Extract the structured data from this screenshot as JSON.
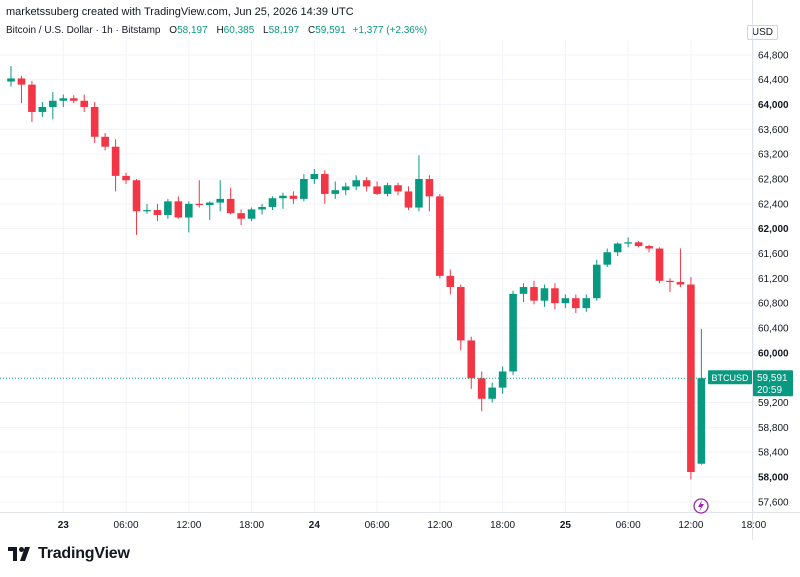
{
  "header": {
    "caption": "marketssuberg created with TradingView.com, Jun 25, 2026 14:39 UTC"
  },
  "legend": {
    "symbol": "Bitcoin / U.S. Dollar · 1h · Bitstamp",
    "open_label": "O",
    "open": "58,197",
    "high_label": "H",
    "high": "60,385",
    "low_label": "L",
    "low": "58,197",
    "close_label": "C",
    "close": "59,591",
    "change": "+1,377 (+2.36%)"
  },
  "currency": "USD",
  "brand": {
    "name": "TradingView",
    "icon": "tradingview-logo-icon"
  },
  "price_tag": {
    "symbol": "BTCUSD",
    "price": "59,591",
    "countdown": "20:59"
  },
  "colors": {
    "up": "#089981",
    "down": "#f23645",
    "grid": "#f0f3fa",
    "text": "#131722",
    "last_line": "#089981"
  },
  "chart_data": {
    "type": "candlestick",
    "interval": "1h",
    "ylim": [
      57400,
      65000
    ],
    "y_ticks": [
      {
        "value": 64800,
        "label": "64,800",
        "bold": false
      },
      {
        "value": 64400,
        "label": "64,400",
        "bold": false
      },
      {
        "value": 64000,
        "label": "64,000",
        "bold": true
      },
      {
        "value": 63600,
        "label": "63,600",
        "bold": false
      },
      {
        "value": 63200,
        "label": "63,200",
        "bold": false
      },
      {
        "value": 62800,
        "label": "62,800",
        "bold": false
      },
      {
        "value": 62400,
        "label": "62,400",
        "bold": false
      },
      {
        "value": 62000,
        "label": "62,000",
        "bold": true
      },
      {
        "value": 61600,
        "label": "61,600",
        "bold": false
      },
      {
        "value": 61200,
        "label": "61,200",
        "bold": false
      },
      {
        "value": 60800,
        "label": "60,800",
        "bold": false
      },
      {
        "value": 60400,
        "label": "60,400",
        "bold": false
      },
      {
        "value": 60000,
        "label": "60,000",
        "bold": true
      },
      {
        "value": 59200,
        "label": "59,200",
        "bold": false
      },
      {
        "value": 58800,
        "label": "58,800",
        "bold": false
      },
      {
        "value": 58400,
        "label": "58,400",
        "bold": false
      },
      {
        "value": 58000,
        "label": "58,000",
        "bold": true
      },
      {
        "value": 57600,
        "label": "57,600",
        "bold": false
      }
    ],
    "x_ticks": [
      {
        "index": 5,
        "label": "23",
        "bold": true
      },
      {
        "index": 11,
        "label": "06:00",
        "bold": false
      },
      {
        "index": 17,
        "label": "12:00",
        "bold": false
      },
      {
        "index": 23,
        "label": "18:00",
        "bold": false
      },
      {
        "index": 29,
        "label": "24",
        "bold": true
      },
      {
        "index": 35,
        "label": "06:00",
        "bold": false
      },
      {
        "index": 41,
        "label": "12:00",
        "bold": false
      },
      {
        "index": 47,
        "label": "18:00",
        "bold": false
      },
      {
        "index": 53,
        "label": "25",
        "bold": true
      },
      {
        "index": 59,
        "label": "06:00",
        "bold": false
      },
      {
        "index": 65,
        "label": "12:00",
        "bold": false
      },
      {
        "index": 71,
        "label": "18:00",
        "bold": false
      }
    ],
    "last_price": 59591,
    "candles": [
      {
        "o": 64370,
        "h": 64620,
        "l": 64290,
        "c": 64420
      },
      {
        "o": 64420,
        "h": 64460,
        "l": 64020,
        "c": 64320
      },
      {
        "o": 64320,
        "h": 64380,
        "l": 63720,
        "c": 63880
      },
      {
        "o": 63880,
        "h": 64040,
        "l": 63800,
        "c": 63960
      },
      {
        "o": 63960,
        "h": 64200,
        "l": 63760,
        "c": 64060
      },
      {
        "o": 64060,
        "h": 64160,
        "l": 63960,
        "c": 64100
      },
      {
        "o": 64100,
        "h": 64150,
        "l": 64020,
        "c": 64060
      },
      {
        "o": 64060,
        "h": 64160,
        "l": 63880,
        "c": 63960
      },
      {
        "o": 63960,
        "h": 64040,
        "l": 63380,
        "c": 63480
      },
      {
        "o": 63480,
        "h": 63540,
        "l": 63260,
        "c": 63320
      },
      {
        "o": 63320,
        "h": 63440,
        "l": 62600,
        "c": 62850
      },
      {
        "o": 62850,
        "h": 62900,
        "l": 62720,
        "c": 62780
      },
      {
        "o": 62780,
        "h": 62800,
        "l": 61900,
        "c": 62280
      },
      {
        "o": 62280,
        "h": 62400,
        "l": 62240,
        "c": 62300
      },
      {
        "o": 62300,
        "h": 62400,
        "l": 62120,
        "c": 62220
      },
      {
        "o": 62220,
        "h": 62480,
        "l": 62160,
        "c": 62440
      },
      {
        "o": 62440,
        "h": 62520,
        "l": 62160,
        "c": 62180
      },
      {
        "o": 62180,
        "h": 62440,
        "l": 61940,
        "c": 62400
      },
      {
        "o": 62400,
        "h": 62780,
        "l": 62340,
        "c": 62380
      },
      {
        "o": 62380,
        "h": 62440,
        "l": 62140,
        "c": 62420
      },
      {
        "o": 62420,
        "h": 62780,
        "l": 62280,
        "c": 62480
      },
      {
        "o": 62480,
        "h": 62660,
        "l": 62230,
        "c": 62250
      },
      {
        "o": 62250,
        "h": 62310,
        "l": 62060,
        "c": 62160
      },
      {
        "o": 62160,
        "h": 62340,
        "l": 62120,
        "c": 62310
      },
      {
        "o": 62310,
        "h": 62400,
        "l": 62230,
        "c": 62350
      },
      {
        "o": 62350,
        "h": 62520,
        "l": 62300,
        "c": 62490
      },
      {
        "o": 62490,
        "h": 62580,
        "l": 62320,
        "c": 62530
      },
      {
        "o": 62530,
        "h": 62600,
        "l": 62400,
        "c": 62480
      },
      {
        "o": 62480,
        "h": 62880,
        "l": 62440,
        "c": 62800
      },
      {
        "o": 62800,
        "h": 62960,
        "l": 62720,
        "c": 62880
      },
      {
        "o": 62880,
        "h": 62940,
        "l": 62400,
        "c": 62560
      },
      {
        "o": 62560,
        "h": 62760,
        "l": 62480,
        "c": 62620
      },
      {
        "o": 62620,
        "h": 62740,
        "l": 62540,
        "c": 62680
      },
      {
        "o": 62680,
        "h": 62860,
        "l": 62620,
        "c": 62780
      },
      {
        "o": 62780,
        "h": 62830,
        "l": 62600,
        "c": 62680
      },
      {
        "o": 62680,
        "h": 62760,
        "l": 62540,
        "c": 62560
      },
      {
        "o": 62560,
        "h": 62740,
        "l": 62520,
        "c": 62700
      },
      {
        "o": 62700,
        "h": 62740,
        "l": 62540,
        "c": 62600
      },
      {
        "o": 62600,
        "h": 62680,
        "l": 62300,
        "c": 62340
      },
      {
        "o": 62340,
        "h": 63180,
        "l": 62280,
        "c": 62800
      },
      {
        "o": 62800,
        "h": 62860,
        "l": 62280,
        "c": 62520
      },
      {
        "o": 62520,
        "h": 62560,
        "l": 61200,
        "c": 61240
      },
      {
        "o": 61240,
        "h": 61340,
        "l": 60940,
        "c": 61060
      },
      {
        "o": 61060,
        "h": 61100,
        "l": 60040,
        "c": 60200
      },
      {
        "o": 60200,
        "h": 60260,
        "l": 59420,
        "c": 59590
      },
      {
        "o": 59590,
        "h": 59700,
        "l": 59060,
        "c": 59260
      },
      {
        "o": 59260,
        "h": 59520,
        "l": 59200,
        "c": 59440
      },
      {
        "o": 59440,
        "h": 59780,
        "l": 59340,
        "c": 59700
      },
      {
        "o": 59700,
        "h": 61000,
        "l": 59640,
        "c": 60950
      },
      {
        "o": 60950,
        "h": 61120,
        "l": 60820,
        "c": 61060
      },
      {
        "o": 61060,
        "h": 61160,
        "l": 60780,
        "c": 60840
      },
      {
        "o": 60840,
        "h": 61100,
        "l": 60740,
        "c": 61040
      },
      {
        "o": 61040,
        "h": 61120,
        "l": 60700,
        "c": 60800
      },
      {
        "o": 60800,
        "h": 60940,
        "l": 60720,
        "c": 60880
      },
      {
        "o": 60880,
        "h": 60940,
        "l": 60640,
        "c": 60720
      },
      {
        "o": 60720,
        "h": 60940,
        "l": 60660,
        "c": 60880
      },
      {
        "o": 60880,
        "h": 61500,
        "l": 60840,
        "c": 61420
      },
      {
        "o": 61420,
        "h": 61680,
        "l": 61380,
        "c": 61620
      },
      {
        "o": 61620,
        "h": 61780,
        "l": 61560,
        "c": 61760
      },
      {
        "o": 61760,
        "h": 61860,
        "l": 61700,
        "c": 61780
      },
      {
        "o": 61780,
        "h": 61800,
        "l": 61700,
        "c": 61720
      },
      {
        "o": 61720,
        "h": 61740,
        "l": 61620,
        "c": 61680
      },
      {
        "o": 61680,
        "h": 61700,
        "l": 61120,
        "c": 61160
      },
      {
        "o": 61160,
        "h": 61200,
        "l": 60980,
        "c": 61140
      },
      {
        "o": 61140,
        "h": 61680,
        "l": 61060,
        "c": 61100
      },
      {
        "o": 61100,
        "h": 61220,
        "l": 57960,
        "c": 58080
      },
      {
        "o": 58214,
        "h": 60385,
        "l": 58197,
        "c": 59591
      }
    ]
  }
}
